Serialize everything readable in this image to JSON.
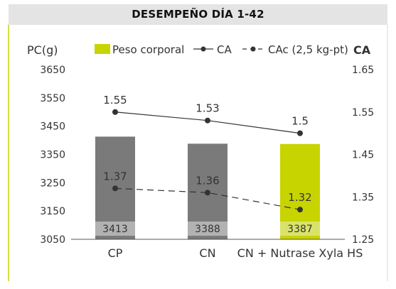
{
  "title": "DESEMPEÑO DÍA 1-42",
  "chart_data": {
    "type": "bar",
    "categories": [
      "CP",
      "CN",
      "CN + Nutrase Xyla HS"
    ],
    "series": [
      {
        "name": "Peso corporal",
        "type": "bar",
        "axis": "left",
        "values": [
          3413,
          3388,
          3387
        ],
        "colors": [
          "#7a7a7a",
          "#7a7a7a",
          "#c8d400"
        ],
        "label_box_colors": [
          "#b2b2b2",
          "#b2b2b2",
          "#d9e36a"
        ]
      },
      {
        "name": "CA",
        "type": "line",
        "axis": "right",
        "style": "solid",
        "values": [
          1.55,
          1.53,
          1.5
        ],
        "color": "#333333"
      },
      {
        "name": "CAc (2,5 kg-pt)",
        "type": "line",
        "axis": "right",
        "style": "dashed",
        "values": [
          1.37,
          1.36,
          1.32
        ],
        "color": "#333333"
      }
    ],
    "left_axis": {
      "label": "PC(g)",
      "ylim": [
        3050,
        3650
      ],
      "ticks": [
        3050,
        3150,
        3250,
        3350,
        3450,
        3550,
        3650
      ]
    },
    "right_axis": {
      "label": "CA",
      "ylim": [
        1.25,
        1.65
      ],
      "ticks": [
        "1.25",
        "1.35",
        "1.45",
        "1.55",
        "1.65"
      ]
    },
    "legend": {
      "placement": "top",
      "entries": [
        "Peso corporal",
        "CA",
        "CAc (2,5 kg-pt)"
      ]
    },
    "grid": false
  }
}
